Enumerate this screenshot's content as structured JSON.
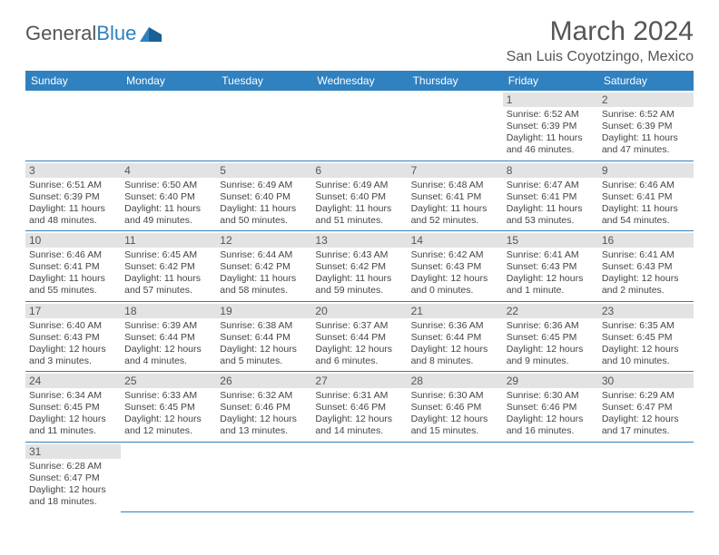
{
  "logo": {
    "text1": "General",
    "text2": "Blue"
  },
  "title": "March 2024",
  "subtitle": "San Luis Coyotzingo, Mexico",
  "colors": {
    "header_bg": "#2f81c0",
    "header_fg": "#ffffff",
    "daynum_bg": "#e3e3e3",
    "row_border": "#2f81c0",
    "text": "#444444"
  },
  "weekdays": [
    "Sunday",
    "Monday",
    "Tuesday",
    "Wednesday",
    "Thursday",
    "Friday",
    "Saturday"
  ],
  "first_weekday_index": 5,
  "days": [
    {
      "n": 1,
      "sunrise": "6:52 AM",
      "sunset": "6:39 PM",
      "daylight": "11 hours and 46 minutes."
    },
    {
      "n": 2,
      "sunrise": "6:52 AM",
      "sunset": "6:39 PM",
      "daylight": "11 hours and 47 minutes."
    },
    {
      "n": 3,
      "sunrise": "6:51 AM",
      "sunset": "6:39 PM",
      "daylight": "11 hours and 48 minutes."
    },
    {
      "n": 4,
      "sunrise": "6:50 AM",
      "sunset": "6:40 PM",
      "daylight": "11 hours and 49 minutes."
    },
    {
      "n": 5,
      "sunrise": "6:49 AM",
      "sunset": "6:40 PM",
      "daylight": "11 hours and 50 minutes."
    },
    {
      "n": 6,
      "sunrise": "6:49 AM",
      "sunset": "6:40 PM",
      "daylight": "11 hours and 51 minutes."
    },
    {
      "n": 7,
      "sunrise": "6:48 AM",
      "sunset": "6:41 PM",
      "daylight": "11 hours and 52 minutes."
    },
    {
      "n": 8,
      "sunrise": "6:47 AM",
      "sunset": "6:41 PM",
      "daylight": "11 hours and 53 minutes."
    },
    {
      "n": 9,
      "sunrise": "6:46 AM",
      "sunset": "6:41 PM",
      "daylight": "11 hours and 54 minutes."
    },
    {
      "n": 10,
      "sunrise": "6:46 AM",
      "sunset": "6:41 PM",
      "daylight": "11 hours and 55 minutes."
    },
    {
      "n": 11,
      "sunrise": "6:45 AM",
      "sunset": "6:42 PM",
      "daylight": "11 hours and 57 minutes."
    },
    {
      "n": 12,
      "sunrise": "6:44 AM",
      "sunset": "6:42 PM",
      "daylight": "11 hours and 58 minutes."
    },
    {
      "n": 13,
      "sunrise": "6:43 AM",
      "sunset": "6:42 PM",
      "daylight": "11 hours and 59 minutes."
    },
    {
      "n": 14,
      "sunrise": "6:42 AM",
      "sunset": "6:43 PM",
      "daylight": "12 hours and 0 minutes."
    },
    {
      "n": 15,
      "sunrise": "6:41 AM",
      "sunset": "6:43 PM",
      "daylight": "12 hours and 1 minute."
    },
    {
      "n": 16,
      "sunrise": "6:41 AM",
      "sunset": "6:43 PM",
      "daylight": "12 hours and 2 minutes."
    },
    {
      "n": 17,
      "sunrise": "6:40 AM",
      "sunset": "6:43 PM",
      "daylight": "12 hours and 3 minutes."
    },
    {
      "n": 18,
      "sunrise": "6:39 AM",
      "sunset": "6:44 PM",
      "daylight": "12 hours and 4 minutes."
    },
    {
      "n": 19,
      "sunrise": "6:38 AM",
      "sunset": "6:44 PM",
      "daylight": "12 hours and 5 minutes."
    },
    {
      "n": 20,
      "sunrise": "6:37 AM",
      "sunset": "6:44 PM",
      "daylight": "12 hours and 6 minutes."
    },
    {
      "n": 21,
      "sunrise": "6:36 AM",
      "sunset": "6:44 PM",
      "daylight": "12 hours and 8 minutes."
    },
    {
      "n": 22,
      "sunrise": "6:36 AM",
      "sunset": "6:45 PM",
      "daylight": "12 hours and 9 minutes."
    },
    {
      "n": 23,
      "sunrise": "6:35 AM",
      "sunset": "6:45 PM",
      "daylight": "12 hours and 10 minutes."
    },
    {
      "n": 24,
      "sunrise": "6:34 AM",
      "sunset": "6:45 PM",
      "daylight": "12 hours and 11 minutes."
    },
    {
      "n": 25,
      "sunrise": "6:33 AM",
      "sunset": "6:45 PM",
      "daylight": "12 hours and 12 minutes."
    },
    {
      "n": 26,
      "sunrise": "6:32 AM",
      "sunset": "6:46 PM",
      "daylight": "12 hours and 13 minutes."
    },
    {
      "n": 27,
      "sunrise": "6:31 AM",
      "sunset": "6:46 PM",
      "daylight": "12 hours and 14 minutes."
    },
    {
      "n": 28,
      "sunrise": "6:30 AM",
      "sunset": "6:46 PM",
      "daylight": "12 hours and 15 minutes."
    },
    {
      "n": 29,
      "sunrise": "6:30 AM",
      "sunset": "6:46 PM",
      "daylight": "12 hours and 16 minutes."
    },
    {
      "n": 30,
      "sunrise": "6:29 AM",
      "sunset": "6:47 PM",
      "daylight": "12 hours and 17 minutes."
    },
    {
      "n": 31,
      "sunrise": "6:28 AM",
      "sunset": "6:47 PM",
      "daylight": "12 hours and 18 minutes."
    }
  ],
  "labels": {
    "sunrise": "Sunrise:",
    "sunset": "Sunset:",
    "daylight": "Daylight:"
  }
}
